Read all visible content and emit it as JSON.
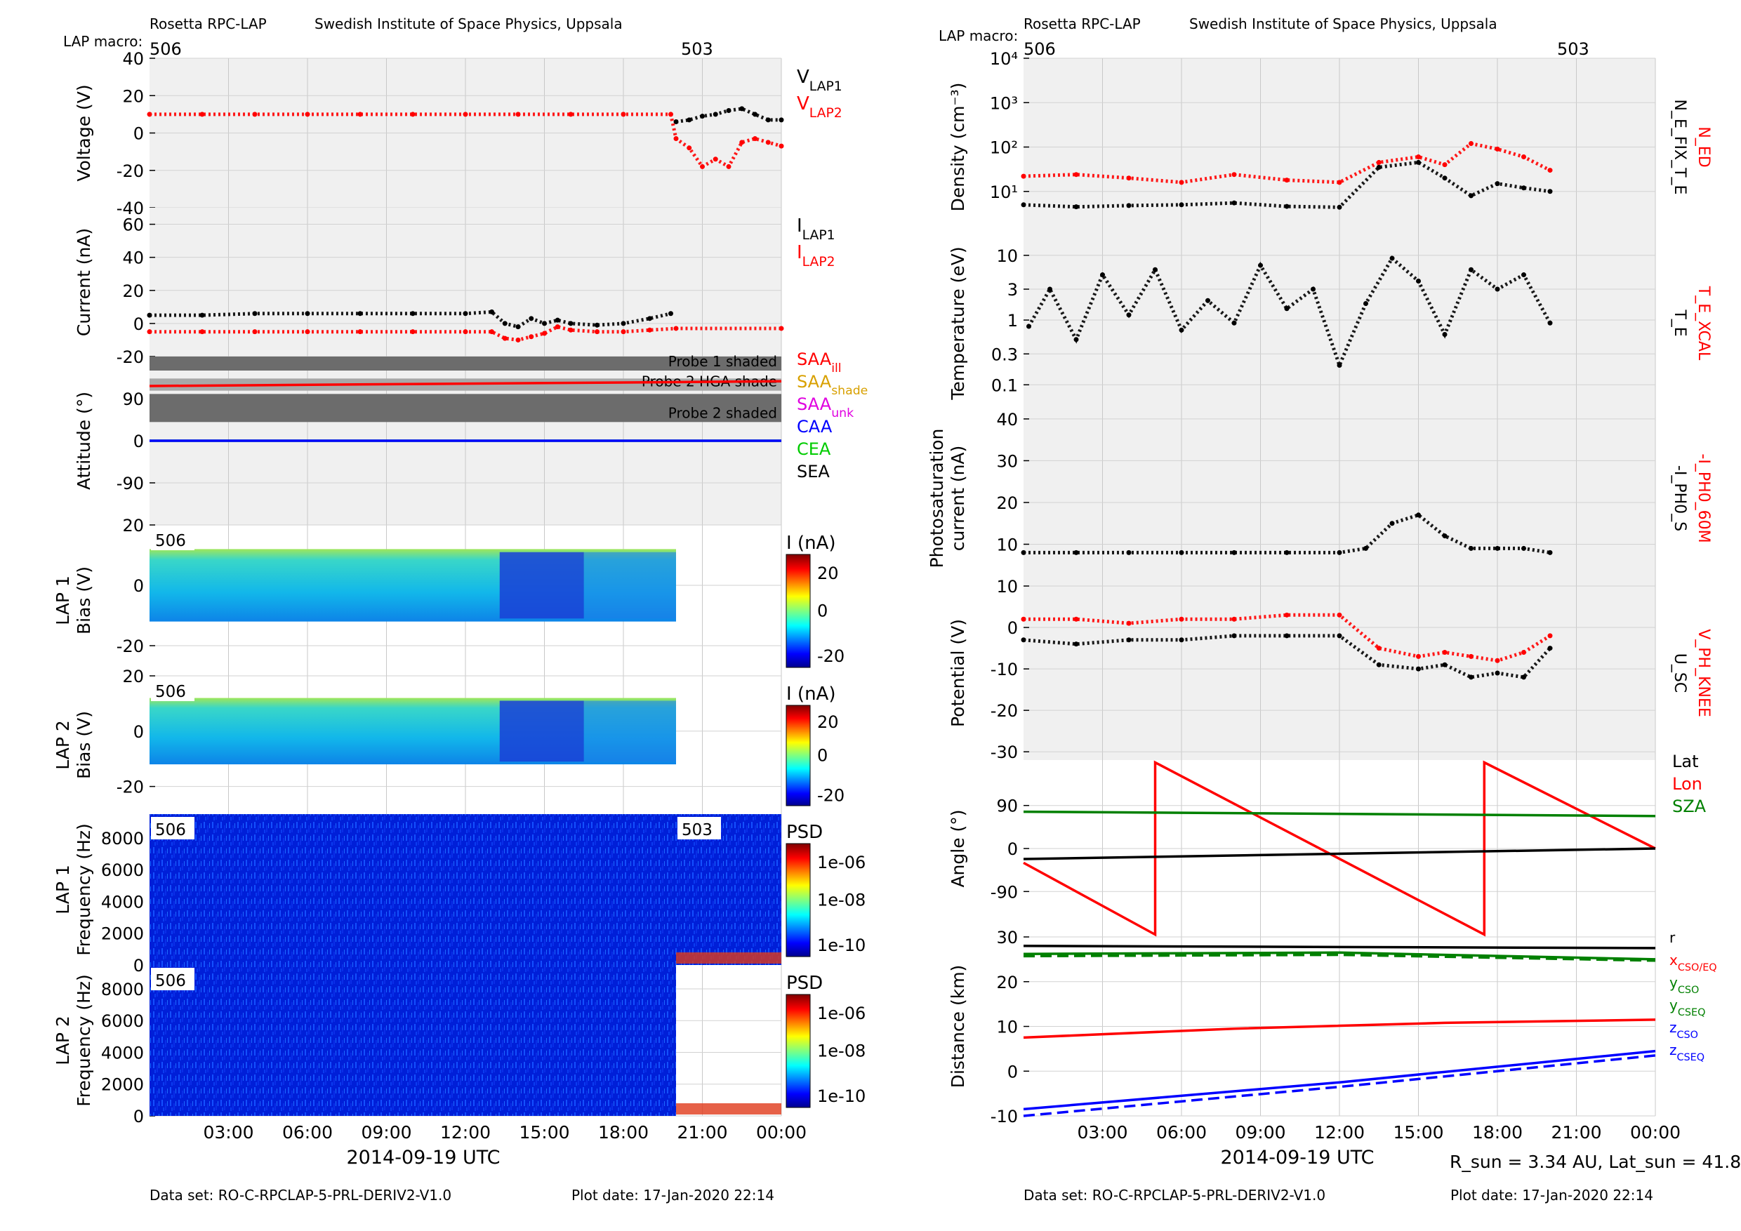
{
  "header": {
    "instrument": "Rosetta RPC-LAP",
    "institute": "Swedish Institute of Space Physics, Uppsala",
    "macro_label": "LAP macro:",
    "macros": [
      "506",
      "503"
    ]
  },
  "footer": {
    "dataset": "Data set: RO-C-RPCLAP-5-PRL-DERIV2-V1.0",
    "plot_date": "Plot date: 17-Jan-2020 22:14",
    "sun_info": "R_sun = 3.34 AU, Lat_sun = 41.8°"
  },
  "time_axis": {
    "xlabel": "2014-09-19 UTC",
    "ticks": [
      "03:00",
      "06:00",
      "09:00",
      "12:00",
      "15:00",
      "18:00",
      "21:00",
      "00:00"
    ],
    "range_hours": [
      0,
      24
    ]
  },
  "chart_data": [
    {
      "id": "voltage",
      "type": "scatter",
      "ylabel": "Voltage (V)",
      "ylim": [
        -40,
        40
      ],
      "yticks": [
        "40",
        "20",
        "0",
        "-20",
        "-40"
      ],
      "legend": [
        "V_LAP1",
        "V_LAP2"
      ],
      "series": [
        {
          "name": "V_LAP1",
          "color": "#000000",
          "x": [
            20.0,
            20.5,
            21.0,
            21.5,
            22.0,
            22.5,
            23.0,
            23.5,
            24.0
          ],
          "y": [
            6,
            7,
            9,
            10,
            12,
            13,
            10,
            7,
            7
          ]
        },
        {
          "name": "V_LAP2",
          "color": "#ff0000",
          "x": [
            0,
            2,
            4,
            6,
            8,
            10,
            12,
            14,
            16,
            18,
            19.8,
            20.0,
            20.5,
            21.0,
            21.5,
            22.0,
            22.5,
            23.0,
            23.5,
            24.0
          ],
          "y": [
            10,
            10,
            10,
            10,
            10,
            10,
            10,
            10,
            10,
            10,
            10,
            -3,
            -8,
            -18,
            -14,
            -18,
            -5,
            -3,
            -5,
            -7
          ]
        }
      ]
    },
    {
      "id": "current",
      "type": "scatter",
      "ylabel": "Current (nA)",
      "ylim": [
        -20,
        70
      ],
      "yticks": [
        "60",
        "40",
        "20",
        "0",
        "-20"
      ],
      "legend": [
        "I_LAP1",
        "I_LAP2"
      ],
      "series": [
        {
          "name": "I_LAP1",
          "color": "#000000",
          "x": [
            0,
            2,
            4,
            6,
            8,
            10,
            12,
            13.0,
            13.5,
            14.0,
            14.5,
            15.0,
            15.5,
            16.0,
            17.0,
            18.0,
            19.0,
            19.8
          ],
          "y": [
            5,
            5,
            6,
            6,
            6,
            6,
            6,
            7,
            0,
            -2,
            3,
            0,
            2,
            0,
            -1,
            0,
            3,
            6
          ]
        },
        {
          "name": "I_LAP2",
          "color": "#ff0000",
          "x": [
            0,
            2,
            4,
            6,
            8,
            10,
            12,
            13.0,
            13.5,
            14.0,
            14.5,
            15.0,
            15.5,
            16.0,
            17.0,
            18.0,
            19.0,
            20.0,
            24.0
          ],
          "y": [
            -5,
            -5,
            -5,
            -5,
            -5,
            -5,
            -5,
            -5,
            -9,
            -10,
            -8,
            -6,
            -2,
            -4,
            -5,
            -5,
            -4,
            -3,
            -3
          ]
        }
      ]
    },
    {
      "id": "attitude",
      "type": "line",
      "ylabel": "Attitude (°)",
      "ylim": [
        -180,
        180
      ],
      "yticks": [
        "90",
        "0",
        "-90"
      ],
      "shaded_bands": [
        "Probe 1 shaded",
        "Probe 2 HGA shade",
        "Probe 2 shaded"
      ],
      "legend": [
        "SAA_ill",
        "SAA_shade",
        "SAA_unk",
        "CAA",
        "CEA",
        "SEA"
      ],
      "series": [
        {
          "name": "SAA_ill",
          "color": "#ff0000",
          "x": [
            0,
            24
          ],
          "y": [
            117,
            127
          ]
        },
        {
          "name": "CEA",
          "color": "#00cc00",
          "x": [
            0,
            24
          ],
          "y": [
            0,
            0
          ]
        },
        {
          "name": "CAA",
          "color": "#0000ff",
          "x": [
            0,
            24
          ],
          "y": [
            0,
            0
          ]
        }
      ]
    },
    {
      "id": "lap1_bias",
      "type": "heatmap",
      "ylabel": "LAP 1 Bias (V)",
      "ylim": [
        -30,
        20
      ],
      "yticks": [
        "20",
        "0",
        "-20"
      ],
      "colorbar_label": "I (nA)",
      "colorbar_ticks": [
        "20",
        "0",
        "-20"
      ],
      "macro": "506"
    },
    {
      "id": "lap2_bias",
      "type": "heatmap",
      "ylabel": "LAP 2 Bias (V)",
      "ylim": [
        -30,
        20
      ],
      "yticks": [
        "20",
        "0",
        "-20"
      ],
      "colorbar_label": "I (nA)",
      "colorbar_ticks": [
        "20",
        "0",
        "-20"
      ],
      "macro": "506"
    },
    {
      "id": "lap1_psd",
      "type": "heatmap",
      "ylabel": "LAP 1 Frequency (Hz)",
      "ylim": [
        0,
        9500
      ],
      "yticks": [
        "8000",
        "6000",
        "4000",
        "2000",
        "0"
      ],
      "colorbar_label": "PSD",
      "colorbar_ticks": [
        "1e-06",
        "1e-08",
        "1e-10"
      ],
      "macros": [
        "506",
        "503"
      ]
    },
    {
      "id": "lap2_psd",
      "type": "heatmap",
      "ylabel": "LAP 2 Frequency (Hz)",
      "ylim": [
        0,
        9500
      ],
      "yticks": [
        "8000",
        "6000",
        "4000",
        "2000",
        "0"
      ],
      "colorbar_label": "PSD",
      "colorbar_ticks": [
        "1e-06",
        "1e-08",
        "1e-10"
      ],
      "macro": "506"
    },
    {
      "id": "density",
      "type": "scatter",
      "ylabel": "Density (cm⁻³)",
      "yscale": "log",
      "ylim": [
        1,
        10000
      ],
      "yticks": [
        "10⁴",
        "10³",
        "10²",
        "10¹"
      ],
      "right_labels": [
        "N_ED",
        "N_E_FIX_T_E"
      ],
      "series": [
        {
          "name": "N_ED",
          "color": "#ff0000",
          "x": [
            0,
            2,
            4,
            6,
            8,
            10,
            12,
            13.5,
            15,
            16,
            17,
            18,
            19,
            20
          ],
          "y": [
            22,
            24,
            20,
            16,
            24,
            18,
            16,
            45,
            60,
            40,
            120,
            90,
            60,
            30
          ]
        },
        {
          "name": "N_E_FIX_T_E",
          "color": "#000000",
          "x": [
            0,
            2,
            4,
            6,
            8,
            10,
            12,
            13.5,
            15,
            16,
            17,
            18,
            19,
            20
          ],
          "y": [
            5,
            4.5,
            4.8,
            5,
            5.5,
            4.6,
            4.4,
            35,
            45,
            20,
            8,
            15,
            12,
            10
          ]
        }
      ]
    },
    {
      "id": "temperature",
      "type": "scatter",
      "ylabel": "Temperature (eV)",
      "yscale": "log",
      "ylim": [
        0.04,
        20
      ],
      "yticks": [
        "10",
        "3",
        "1",
        "0.3",
        "0.1"
      ],
      "right_labels": [
        "T_E_XCAL",
        "T_E"
      ],
      "series": [
        {
          "name": "T_E",
          "color": "#000000",
          "x": [
            0.2,
            1,
            2,
            3,
            4,
            5,
            6,
            7,
            8,
            9,
            10,
            11,
            12,
            13,
            14,
            15,
            16,
            17,
            18,
            19,
            20
          ],
          "y": [
            0.8,
            3,
            0.5,
            5,
            1.2,
            6,
            0.7,
            2,
            0.9,
            7,
            1.5,
            3,
            0.2,
            1.8,
            9,
            4,
            0.6,
            6,
            3,
            5,
            0.9
          ]
        }
      ]
    },
    {
      "id": "photosaturation",
      "type": "scatter",
      "ylabel": "Photosaturation current (nA)",
      "ylim": [
        0,
        42
      ],
      "yticks": [
        "40",
        "30",
        "20",
        "10"
      ],
      "right_labels": [
        "-I_PH0_60M",
        "-I_PH0_S"
      ],
      "series": [
        {
          "name": "-I_PH0_S",
          "color": "#000000",
          "x": [
            0,
            2,
            4,
            6,
            8,
            10,
            12,
            13,
            14,
            15,
            16,
            17,
            18,
            19,
            20
          ],
          "y": [
            8,
            8,
            8,
            8,
            8,
            8,
            8,
            9,
            15,
            17,
            12,
            9,
            9,
            9,
            8
          ]
        }
      ]
    },
    {
      "id": "potential",
      "type": "scatter",
      "ylabel": "Potential (V)",
      "ylim": [
        -32,
        10
      ],
      "yticks": [
        "10",
        "0",
        "-10",
        "-20",
        "-30"
      ],
      "right_labels": [
        "V_PH_KNEE",
        "U_SC"
      ],
      "series": [
        {
          "name": "V_PH_KNEE",
          "color": "#ff0000",
          "x": [
            0,
            2,
            4,
            6,
            8,
            10,
            12,
            13.5,
            15,
            16,
            17,
            18,
            19,
            20
          ],
          "y": [
            2,
            2,
            1,
            2,
            2,
            3,
            3,
            -5,
            -7,
            -6,
            -7,
            -8,
            -6,
            -2
          ]
        },
        {
          "name": "U_SC",
          "color": "#000000",
          "x": [
            0,
            2,
            4,
            6,
            8,
            10,
            12,
            13.5,
            15,
            16,
            17,
            18,
            19,
            20
          ],
          "y": [
            -3,
            -4,
            -3,
            -3,
            -2,
            -2,
            -2,
            -9,
            -10,
            -9,
            -12,
            -11,
            -12,
            -5
          ]
        }
      ]
    },
    {
      "id": "angle",
      "type": "line",
      "ylabel": "Angle (°)",
      "ylim": [
        -185,
        185
      ],
      "yticks": [
        "90",
        "0",
        "-90"
      ],
      "legend": [
        "Lat",
        "Lon",
        "SZA"
      ],
      "series": [
        {
          "name": "Lon",
          "color": "#ff0000",
          "x": [
            0,
            5.0,
            5.001,
            17.5,
            17.501,
            24
          ],
          "y": [
            -30,
            -180,
            180,
            -180,
            180,
            0
          ]
        },
        {
          "name": "SZA",
          "color": "#008000",
          "x": [
            0,
            24
          ],
          "y": [
            77,
            68
          ]
        },
        {
          "name": "Lat",
          "color": "#000000",
          "x": [
            0,
            24
          ],
          "y": [
            -22,
            0
          ]
        }
      ]
    },
    {
      "id": "distance",
      "type": "line",
      "ylabel": "Distance (km)",
      "ylim": [
        -10,
        30
      ],
      "yticks": [
        "30",
        "20",
        "10",
        "0",
        "-10"
      ],
      "legend": [
        "r",
        "x_CSO/EQ",
        "y_CSO",
        "y_CSEQ",
        "z_CSO",
        "z_CSEQ"
      ],
      "series": [
        {
          "name": "r",
          "color": "#000000",
          "dash": false,
          "x": [
            0,
            24
          ],
          "y": [
            28,
            27.5
          ]
        },
        {
          "name": "x_CSO/EQ",
          "color": "#ff0000",
          "dash": false,
          "x": [
            0,
            8,
            16,
            24
          ],
          "y": [
            7.5,
            9.5,
            10.8,
            11.5
          ]
        },
        {
          "name": "y_CSO",
          "color": "#008000",
          "dash": false,
          "x": [
            0,
            12,
            24
          ],
          "y": [
            26.2,
            26.5,
            25
          ]
        },
        {
          "name": "y_CSEQ",
          "color": "#008000",
          "dash": true,
          "x": [
            0,
            12,
            24
          ],
          "y": [
            25.7,
            26,
            24.7
          ]
        },
        {
          "name": "z_CSO",
          "color": "#0000ff",
          "dash": false,
          "x": [
            0,
            12,
            24
          ],
          "y": [
            -8.5,
            -2.5,
            4.5
          ]
        },
        {
          "name": "z_CSEQ",
          "color": "#0000ff",
          "dash": true,
          "x": [
            0,
            12,
            24
          ],
          "y": [
            -10,
            -3.5,
            3.5
          ]
        }
      ]
    }
  ]
}
